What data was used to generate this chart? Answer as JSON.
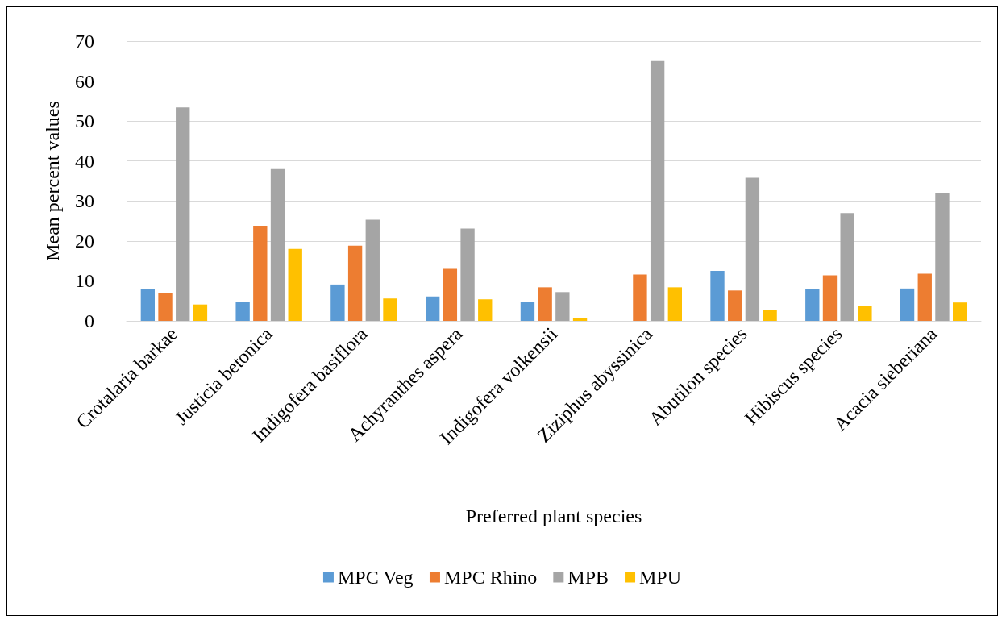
{
  "chart_data": {
    "type": "bar",
    "xlabel": "Preferred plant species",
    "ylabel": "Mean percent values",
    "categories": [
      "Crotalaria barkae",
      "Justicia betonica",
      "Indigofera basiflora",
      "Achyranthes aspera",
      "Indigofera volkensii",
      "Ziziphus abyssinica",
      "Abutilon species",
      "Hibiscus species",
      "Acacia sieberiana"
    ],
    "series": [
      {
        "name": "MPC Veg",
        "color": "#5b9bd5",
        "values": [
          7.9,
          4.7,
          9.1,
          6.1,
          4.7,
          0,
          12.5,
          7.9,
          8.1
        ]
      },
      {
        "name": "MPC Rhino",
        "color": "#ed7d31",
        "values": [
          7.0,
          23.8,
          18.8,
          13.0,
          8.4,
          11.6,
          7.6,
          11.4,
          11.8
        ]
      },
      {
        "name": "MPB",
        "color": "#a5a5a5",
        "values": [
          53.4,
          38.0,
          25.3,
          23.1,
          7.2,
          65.0,
          35.8,
          27.0,
          31.9
        ]
      },
      {
        "name": "MPU",
        "color": "#ffc000",
        "values": [
          4.1,
          18.0,
          5.6,
          5.4,
          0.7,
          8.4,
          2.7,
          3.7,
          4.6
        ]
      }
    ],
    "ylim": [
      0,
      70
    ],
    "yticks": [
      0,
      10,
      20,
      30,
      40,
      50,
      60,
      70
    ],
    "grid": "y",
    "legend": "bottom"
  }
}
